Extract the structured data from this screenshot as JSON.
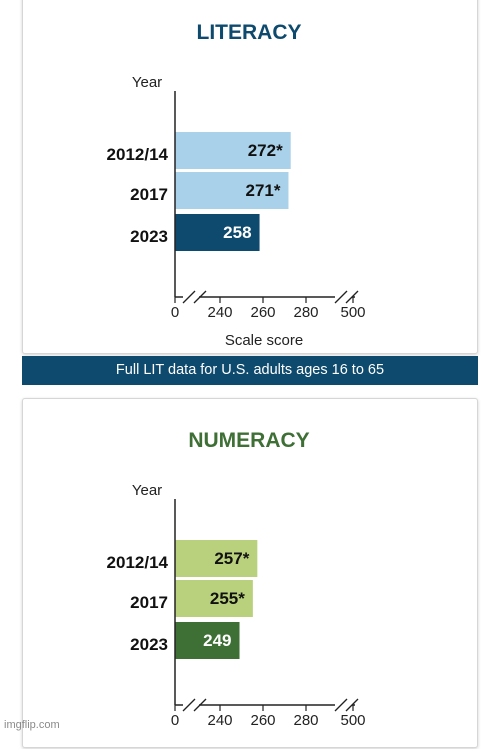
{
  "chart_data": [
    {
      "type": "bar",
      "title": "LITERACY",
      "ylabel": "Year",
      "xlabel": "Scale score",
      "categories": [
        "2012/14",
        "2017",
        "2023"
      ],
      "values": [
        272,
        271,
        258
      ],
      "value_labels": [
        "272*",
        "271*",
        "258"
      ],
      "xticks": [
        "0",
        "240",
        "260",
        "280",
        "500"
      ],
      "xlim": [
        220,
        300
      ],
      "axis_break": true,
      "title_color": "#0e4a6e",
      "bar_colors": [
        "#a9d1e9",
        "#a9d1e9",
        "#0e4a6e"
      ],
      "label_colors": [
        "#111111",
        "#111111",
        "#ffffff"
      ]
    },
    {
      "type": "bar",
      "title": "NUMERACY",
      "ylabel": "Year",
      "xlabel": "",
      "categories": [
        "2012/14",
        "2017",
        "2023"
      ],
      "values": [
        257,
        255,
        249
      ],
      "value_labels": [
        "257*",
        "255*",
        "249"
      ],
      "xticks": [
        "0",
        "240",
        "260",
        "280",
        "500"
      ],
      "xlim": [
        220,
        300
      ],
      "axis_break": true,
      "title_color": "#3e6f35",
      "bar_colors": [
        "#b9d17d",
        "#b9d17d",
        "#3e6f35"
      ],
      "label_colors": [
        "#111111",
        "#111111",
        "#ffffff"
      ]
    }
  ],
  "banner": {
    "label": "Full LIT data for U.S. adults ages 16 to 65",
    "color": "#0e4a6e"
  },
  "watermark": "imgflip.com"
}
